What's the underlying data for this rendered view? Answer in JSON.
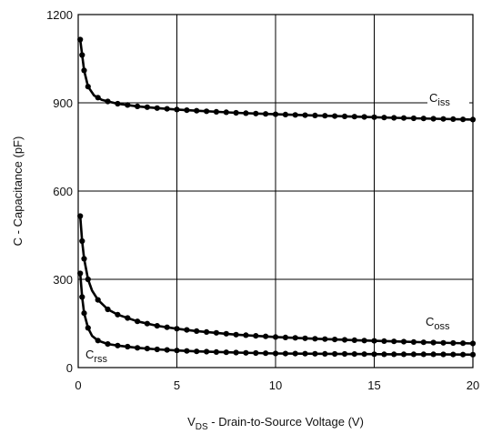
{
  "chart_data": {
    "type": "line",
    "xlabel": {
      "main": "V",
      "sub": "DS",
      "rest": " - Drain-to-Source Voltage (V)"
    },
    "ylabel": "C - Capacitance (pF)",
    "xlim": [
      0,
      20
    ],
    "ylim": [
      0,
      1200
    ],
    "xticks": [
      "0",
      "5",
      "10",
      "15",
      "20"
    ],
    "yticks": [
      "0",
      "300",
      "600",
      "900",
      "1200"
    ],
    "grid": true,
    "series": [
      {
        "name": {
          "main": "C",
          "sub": "iss"
        },
        "x": [
          0.1,
          0.3,
          0.5,
          0.8,
          1.2,
          1.6,
          2,
          3,
          4,
          5,
          6,
          8,
          10,
          12,
          14,
          16,
          18,
          20
        ],
        "y": [
          1115,
          1010,
          955,
          925,
          910,
          903,
          897,
          888,
          882,
          877,
          873,
          866,
          861,
          857,
          853,
          849,
          846,
          843
        ]
      },
      {
        "name": {
          "main": "C",
          "sub": "oss"
        },
        "x": [
          0.1,
          0.2,
          0.3,
          0.5,
          0.7,
          1,
          1.5,
          2,
          3,
          4,
          5,
          6,
          8,
          10,
          12,
          14,
          16,
          18,
          20
        ],
        "y": [
          515,
          430,
          370,
          300,
          262,
          230,
          198,
          180,
          157,
          142,
          132,
          124,
          112,
          104,
          98,
          93,
          89,
          85,
          82
        ]
      },
      {
        "name": {
          "main": "C",
          "sub": "rss"
        },
        "x": [
          0.1,
          0.2,
          0.3,
          0.5,
          0.7,
          1,
          1.5,
          2,
          3,
          4,
          5,
          6,
          8,
          10,
          12,
          14,
          16,
          18,
          20
        ],
        "y": [
          320,
          240,
          185,
          135,
          108,
          92,
          80,
          75,
          67,
          62,
          58,
          55,
          51,
          48,
          47,
          46,
          45,
          45,
          44
        ]
      }
    ]
  }
}
